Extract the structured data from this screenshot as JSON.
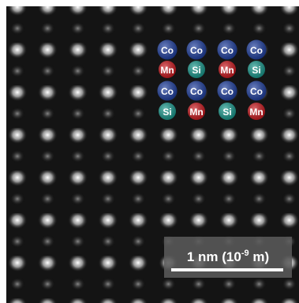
{
  "atom_rows": [
    [
      {
        "label": "Co",
        "color": "#1c3c9c"
      },
      {
        "label": "Co",
        "color": "#1c3c9c"
      },
      {
        "label": "Co",
        "color": "#1c3c9c"
      },
      {
        "label": "Co",
        "color": "#1c3c9c"
      }
    ],
    [
      {
        "label": "Mn",
        "color": "#c8161c"
      },
      {
        "label": "Si",
        "color": "#17968a"
      },
      {
        "label": "Mn",
        "color": "#c8161c"
      },
      {
        "label": "Si",
        "color": "#17968a"
      }
    ],
    [
      {
        "label": "Co",
        "color": "#1c3c9c"
      },
      {
        "label": "Co",
        "color": "#1c3c9c"
      },
      {
        "label": "Co",
        "color": "#1c3c9c"
      },
      {
        "label": "Co",
        "color": "#1c3c9c"
      }
    ],
    [
      {
        "label": "Si",
        "color": "#17968a"
      },
      {
        "label": "Mn",
        "color": "#c8161c"
      },
      {
        "label": "Si",
        "color": "#17968a"
      },
      {
        "label": "Mn",
        "color": "#c8161c"
      }
    ]
  ],
  "scale_bar": {
    "text_before": "1 nm (10",
    "exponent": "-9",
    "text_after": " m)"
  }
}
